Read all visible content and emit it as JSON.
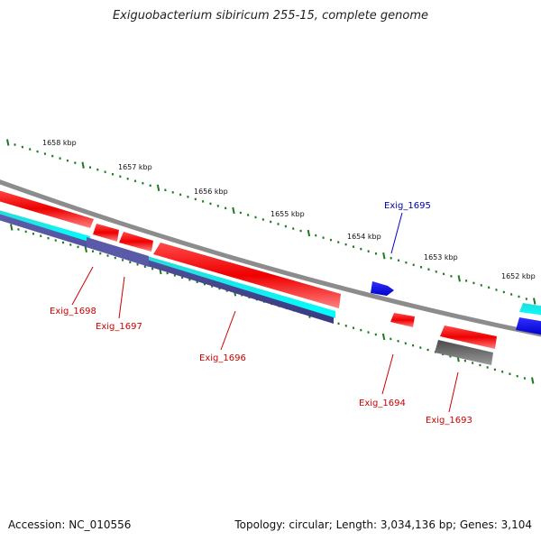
{
  "title": "Exiguobacterium sibiricum 255-15, complete genome",
  "footer": {
    "accession": "Accession: NC_010556",
    "summary": "Topology: circular; Length: 3,034,136 bp; Genes: 3,104"
  },
  "colors": {
    "reverse_gene": "#ff0000",
    "forward_gene": "#0000ff",
    "backbone": "#8c8c8c",
    "cds_track": "#00ffff",
    "rna_track": "#4a4a9a",
    "pseudo_track": "#6e6e6e",
    "ticks": "#1c7a1c",
    "label_reverse": "#cc0000",
    "label_forward": "#0000aa"
  },
  "scale_labels": [
    "1658 kbp",
    "1657 kbp",
    "1656 kbp",
    "1655 kbp",
    "1654 kbp",
    "1653 kbp",
    "1652 kbp"
  ],
  "genes": [
    {
      "id": "Exig_1698",
      "strand": "reverse"
    },
    {
      "id": "Exig_1697",
      "strand": "reverse"
    },
    {
      "id": "Exig_1696",
      "strand": "reverse"
    },
    {
      "id": "Exig_1695",
      "strand": "forward"
    },
    {
      "id": "Exig_1694",
      "strand": "reverse"
    },
    {
      "id": "Exig_1693",
      "strand": "reverse"
    }
  ]
}
